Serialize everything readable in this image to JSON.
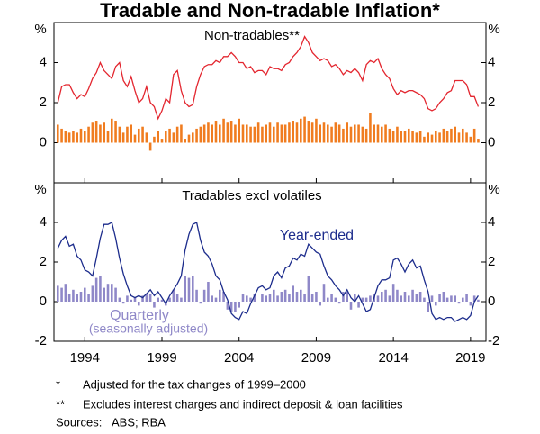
{
  "title": "Tradable and Non-tradable Inflation*",
  "notes": [
    {
      "mark": "*",
      "text": "Adjusted for the tax changes of 1999–2000"
    },
    {
      "mark": "**",
      "text": "Excludes interest charges and indirect deposit & loan facilities"
    }
  ],
  "sources_label": "Sources:",
  "sources": "ABS; RBA",
  "chart_data": [
    {
      "type": "combo",
      "title": "Non-tradables**",
      "ylabel": "%",
      "xlim": [
        1992,
        2020
      ],
      "xticks": [
        1994,
        1999,
        2004,
        2009,
        2014,
        2019
      ],
      "ylim": [
        -2,
        6
      ],
      "yticks": [
        0,
        2,
        4
      ],
      "x": [
        1992.25,
        1992.5,
        1992.75,
        1993,
        1993.25,
        1993.5,
        1993.75,
        1994,
        1994.25,
        1994.5,
        1994.75,
        1995,
        1995.25,
        1995.5,
        1995.75,
        1996,
        1996.25,
        1996.5,
        1996.75,
        1997,
        1997.25,
        1997.5,
        1997.75,
        1998,
        1998.25,
        1998.5,
        1998.75,
        1999,
        1999.25,
        1999.5,
        1999.75,
        2000,
        2000.25,
        2000.5,
        2000.75,
        2001,
        2001.25,
        2001.5,
        2001.75,
        2002,
        2002.25,
        2002.5,
        2002.75,
        2003,
        2003.25,
        2003.5,
        2003.75,
        2004,
        2004.25,
        2004.5,
        2004.75,
        2005,
        2005.25,
        2005.5,
        2005.75,
        2006,
        2006.25,
        2006.5,
        2006.75,
        2007,
        2007.25,
        2007.5,
        2007.75,
        2008,
        2008.25,
        2008.5,
        2008.75,
        2009,
        2009.25,
        2009.5,
        2009.75,
        2010,
        2010.25,
        2010.5,
        2010.75,
        2011,
        2011.25,
        2011.5,
        2011.75,
        2012,
        2012.25,
        2012.5,
        2012.75,
        2013,
        2013.25,
        2013.5,
        2013.75,
        2014,
        2014.25,
        2014.5,
        2014.75,
        2015,
        2015.25,
        2015.5,
        2015.75,
        2016,
        2016.25,
        2016.5,
        2016.75,
        2017,
        2017.25,
        2017.5,
        2017.75,
        2018,
        2018.25,
        2018.5,
        2018.75,
        2019,
        2019.25,
        2019.5
      ],
      "series": [
        {
          "kind": "bar",
          "color": "#f07c1f",
          "values": [
            0.9,
            0.7,
            0.6,
            0.5,
            0.6,
            0.5,
            0.7,
            0.6,
            0.8,
            1.0,
            1.1,
            0.9,
            1.0,
            0.6,
            1.2,
            1.1,
            0.8,
            0.5,
            0.8,
            0.9,
            0.4,
            0.7,
            0.8,
            0.5,
            -0.4,
            0.3,
            0.6,
            0.2,
            0.6,
            0.7,
            0.5,
            0.8,
            0.9,
            0.2,
            0.4,
            0.5,
            0.7,
            0.8,
            0.9,
            1.0,
            0.9,
            1.1,
            0.9,
            1.2,
            1.0,
            1.1,
            0.9,
            1.2,
            0.9,
            0.9,
            0.8,
            0.8,
            1.0,
            0.8,
            0.9,
            1.0,
            0.8,
            1.0,
            0.9,
            0.9,
            1.0,
            1.1,
            1.0,
            1.2,
            1.3,
            1.1,
            1.0,
            1.2,
            0.9,
            1.0,
            0.9,
            0.8,
            1.0,
            0.9,
            0.7,
            1.0,
            0.8,
            0.9,
            0.9,
            0.8,
            0.7,
            1.5,
            0.9,
            0.9,
            0.8,
            0.9,
            0.7,
            0.6,
            0.8,
            0.6,
            0.6,
            0.7,
            0.6,
            0.5,
            0.6,
            0.3,
            0.5,
            0.4,
            0.6,
            0.5,
            0.7,
            0.6,
            0.7,
            0.8,
            0.5,
            0.7,
            0.5,
            0.3,
            0.7,
            0.2
          ]
        },
        {
          "kind": "line",
          "color": "#e3262f",
          "values": [
            2.0,
            2.8,
            2.9,
            2.9,
            2.5,
            2.2,
            2.4,
            2.3,
            2.7,
            3.2,
            3.5,
            4.0,
            3.6,
            3.4,
            3.2,
            3.8,
            4.0,
            3.1,
            2.8,
            3.3,
            2.6,
            2.0,
            2.2,
            2.8,
            2.0,
            1.8,
            1.2,
            1.6,
            2.2,
            2.0,
            3.4,
            3.6,
            2.6,
            2.0,
            1.8,
            1.9,
            2.8,
            3.4,
            3.8,
            3.9,
            3.9,
            4.1,
            4.0,
            4.3,
            4.3,
            4.5,
            4.3,
            4.0,
            4.0,
            3.7,
            3.8,
            3.5,
            3.6,
            3.6,
            3.4,
            3.8,
            3.7,
            3.7,
            3.6,
            3.9,
            4.0,
            4.3,
            4.5,
            4.8,
            5.3,
            5.0,
            4.5,
            4.3,
            4.1,
            4.2,
            4.1,
            3.8,
            3.9,
            3.7,
            3.4,
            3.6,
            3.5,
            3.7,
            3.5,
            3.1,
            3.9,
            4.1,
            4.0,
            4.2,
            3.7,
            3.4,
            3.2,
            2.7,
            2.4,
            2.6,
            2.5,
            2.6,
            2.6,
            2.5,
            2.4,
            2.2,
            1.7,
            1.6,
            1.7,
            2.0,
            2.2,
            2.5,
            2.6,
            3.1,
            3.1,
            3.1,
            2.9,
            2.3,
            2.3,
            1.8
          ]
        }
      ]
    },
    {
      "type": "combo",
      "title": "Tradables excl volatiles",
      "ylabel": "%",
      "xlim": [
        1992,
        2020
      ],
      "xticks": [
        1994,
        1999,
        2004,
        2009,
        2014,
        2019
      ],
      "ylim": [
        -2,
        6
      ],
      "yticks": [
        -2,
        0,
        2,
        4
      ],
      "x": [
        1992.25,
        1992.5,
        1992.75,
        1993,
        1993.25,
        1993.5,
        1993.75,
        1994,
        1994.25,
        1994.5,
        1994.75,
        1995,
        1995.25,
        1995.5,
        1995.75,
        1996,
        1996.25,
        1996.5,
        1996.75,
        1997,
        1997.25,
        1997.5,
        1997.75,
        1998,
        1998.25,
        1998.5,
        1998.75,
        1999,
        1999.25,
        1999.5,
        1999.75,
        2000,
        2000.25,
        2000.5,
        2000.75,
        2001,
        2001.25,
        2001.5,
        2001.75,
        2002,
        2002.25,
        2002.5,
        2002.75,
        2003,
        2003.25,
        2003.5,
        2003.75,
        2004,
        2004.25,
        2004.5,
        2004.75,
        2005,
        2005.25,
        2005.5,
        2005.75,
        2006,
        2006.25,
        2006.5,
        2006.75,
        2007,
        2007.25,
        2007.5,
        2007.75,
        2008,
        2008.25,
        2008.5,
        2008.75,
        2009,
        2009.25,
        2009.5,
        2009.75,
        2010,
        2010.25,
        2010.5,
        2010.75,
        2011,
        2011.25,
        2011.5,
        2011.75,
        2012,
        2012.25,
        2012.5,
        2012.75,
        2013,
        2013.25,
        2013.5,
        2013.75,
        2014,
        2014.25,
        2014.5,
        2014.75,
        2015,
        2015.25,
        2015.5,
        2015.75,
        2016,
        2016.25,
        2016.5,
        2016.75,
        2017,
        2017.25,
        2017.5,
        2017.75,
        2018,
        2018.25,
        2018.5,
        2018.75,
        2019,
        2019.25,
        2019.5
      ],
      "series": [
        {
          "kind": "bar",
          "name": "Quarterly",
          "subname": "(seasonally adjusted)",
          "color": "#8f88c8",
          "values": [
            0.8,
            0.7,
            0.9,
            0.4,
            0.6,
            0.4,
            0.5,
            0.7,
            0.4,
            0.8,
            1.2,
            1.3,
            0.7,
            0.9,
            0.9,
            0.7,
            0.2,
            -0.1,
            0.3,
            0.1,
            0.2,
            -0.2,
            0.3,
            0.4,
            0.4,
            -0.3,
            0.2,
            0.1,
            -0.2,
            0.2,
            0.6,
            0.4,
            0.2,
            1.3,
            1.2,
            1.3,
            0.6,
            -0.1,
            0.6,
            1.0,
            0.3,
            0.2,
            0.6,
            0.5,
            -0.4,
            -0.5,
            -0.5,
            -0.3,
            0.4,
            0.3,
            0.2,
            0.4,
            0.0,
            0.4,
            0.3,
            0.4,
            0.6,
            0.3,
            0.5,
            0.6,
            0.4,
            0.8,
            0.5,
            0.6,
            0.4,
            1.3,
            0.4,
            0.5,
            -0.2,
            0.9,
            0.2,
            0.4,
            0.2,
            -0.1,
            0.5,
            0.5,
            -0.4,
            0.4,
            -0.3,
            0.2,
            0.2,
            0.3,
            0.4,
            0.3,
            0.5,
            0.6,
            0.3,
            0.9,
            0.6,
            0.3,
            0.5,
            0.3,
            0.6,
            0.4,
            0.5,
            0.2,
            -0.5,
            0.3,
            -0.2,
            0.4,
            0.5,
            0.2,
            0.3,
            0.3,
            -0.1,
            0.2,
            0.4,
            -0.2,
            0.3,
            0.1
          ]
        },
        {
          "kind": "line",
          "name": "Year-ended",
          "color": "#1c2c8c",
          "values": [
            2.7,
            3.1,
            3.3,
            2.8,
            2.9,
            2.3,
            2.1,
            1.6,
            1.5,
            1.3,
            2.2,
            3.2,
            3.9,
            3.9,
            4.0,
            3.2,
            2.2,
            1.4,
            0.8,
            0.3,
            0.2,
            0.3,
            0.2,
            0.4,
            0.6,
            0.3,
            0.5,
            0.2,
            -0.1,
            0.3,
            0.6,
            0.9,
            1.3,
            2.6,
            3.4,
            3.9,
            4.0,
            3.1,
            2.5,
            2.3,
            1.9,
            1.3,
            1.1,
            0.5,
            0.1,
            -0.6,
            -0.8,
            -0.9,
            -0.5,
            -0.6,
            -0.1,
            0.3,
            0.7,
            0.8,
            0.6,
            0.7,
            1.3,
            1.5,
            1.2,
            1.7,
            1.8,
            2.2,
            2.1,
            2.4,
            2.3,
            2.9,
            2.7,
            2.5,
            2.4,
            1.8,
            1.3,
            1.1,
            0.8,
            0.6,
            0.3,
            0.6,
            0.2,
            0.0,
            0.3,
            -0.1,
            -0.5,
            -0.4,
            0.2,
            0.8,
            1.1,
            1.1,
            1.2,
            2.1,
            2.2,
            1.9,
            1.5,
            1.9,
            2.1,
            1.7,
            1.8,
            1.1,
            0.5,
            -0.6,
            -0.9,
            -0.8,
            -0.9,
            -0.8,
            -0.8,
            -1.0,
            -0.9,
            -0.8,
            -0.9,
            -0.7,
            0.0,
            0.3
          ]
        }
      ]
    }
  ]
}
